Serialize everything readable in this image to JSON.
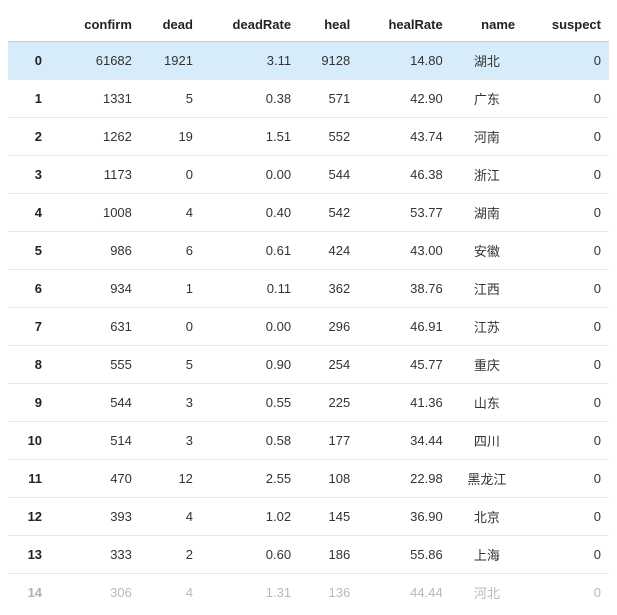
{
  "table": {
    "columns": [
      "confirm",
      "dead",
      "deadRate",
      "heal",
      "healRate",
      "name",
      "suspect"
    ],
    "column_align": [
      "right",
      "right",
      "right",
      "right",
      "right",
      "center",
      "right"
    ],
    "highlight_row_index": 0,
    "font_family": "Arial, Helvetica, sans-serif",
    "font_size_pt": 10,
    "header_bold": true,
    "index_bold": true,
    "border_color": "#e8e8e8",
    "header_border_color": "#cccccc",
    "highlight_bg": "#d6ecfa",
    "text_color": "#333333",
    "background_color": "#ffffff",
    "rows": [
      {
        "idx": "0",
        "confirm": "61682",
        "dead": "1921",
        "deadRate": "3.11",
        "heal": "9128",
        "healRate": "14.80",
        "name": "湖北",
        "suspect": "0"
      },
      {
        "idx": "1",
        "confirm": "1331",
        "dead": "5",
        "deadRate": "0.38",
        "heal": "571",
        "healRate": "42.90",
        "name": "广东",
        "suspect": "0"
      },
      {
        "idx": "2",
        "confirm": "1262",
        "dead": "19",
        "deadRate": "1.51",
        "heal": "552",
        "healRate": "43.74",
        "name": "河南",
        "suspect": "0"
      },
      {
        "idx": "3",
        "confirm": "1173",
        "dead": "0",
        "deadRate": "0.00",
        "heal": "544",
        "healRate": "46.38",
        "name": "浙江",
        "suspect": "0"
      },
      {
        "idx": "4",
        "confirm": "1008",
        "dead": "4",
        "deadRate": "0.40",
        "heal": "542",
        "healRate": "53.77",
        "name": "湖南",
        "suspect": "0"
      },
      {
        "idx": "5",
        "confirm": "986",
        "dead": "6",
        "deadRate": "0.61",
        "heal": "424",
        "healRate": "43.00",
        "name": "安徽",
        "suspect": "0"
      },
      {
        "idx": "6",
        "confirm": "934",
        "dead": "1",
        "deadRate": "0.11",
        "heal": "362",
        "healRate": "38.76",
        "name": "江西",
        "suspect": "0"
      },
      {
        "idx": "7",
        "confirm": "631",
        "dead": "0",
        "deadRate": "0.00",
        "heal": "296",
        "healRate": "46.91",
        "name": "江苏",
        "suspect": "0"
      },
      {
        "idx": "8",
        "confirm": "555",
        "dead": "5",
        "deadRate": "0.90",
        "heal": "254",
        "healRate": "45.77",
        "name": "重庆",
        "suspect": "0"
      },
      {
        "idx": "9",
        "confirm": "544",
        "dead": "3",
        "deadRate": "0.55",
        "heal": "225",
        "healRate": "41.36",
        "name": "山东",
        "suspect": "0"
      },
      {
        "idx": "10",
        "confirm": "514",
        "dead": "3",
        "deadRate": "0.58",
        "heal": "177",
        "healRate": "34.44",
        "name": "四川",
        "suspect": "0"
      },
      {
        "idx": "11",
        "confirm": "470",
        "dead": "12",
        "deadRate": "2.55",
        "heal": "108",
        "healRate": "22.98",
        "name": "黑龙江",
        "suspect": "0"
      },
      {
        "idx": "12",
        "confirm": "393",
        "dead": "4",
        "deadRate": "1.02",
        "heal": "145",
        "healRate": "36.90",
        "name": "北京",
        "suspect": "0"
      },
      {
        "idx": "13",
        "confirm": "333",
        "dead": "2",
        "deadRate": "0.60",
        "heal": "186",
        "healRate": "55.86",
        "name": "上海",
        "suspect": "0"
      },
      {
        "idx": "14",
        "confirm": "306",
        "dead": "4",
        "deadRate": "1.31",
        "heal": "136",
        "healRate": "44.44",
        "name": "河北",
        "suspect": "0"
      }
    ]
  }
}
